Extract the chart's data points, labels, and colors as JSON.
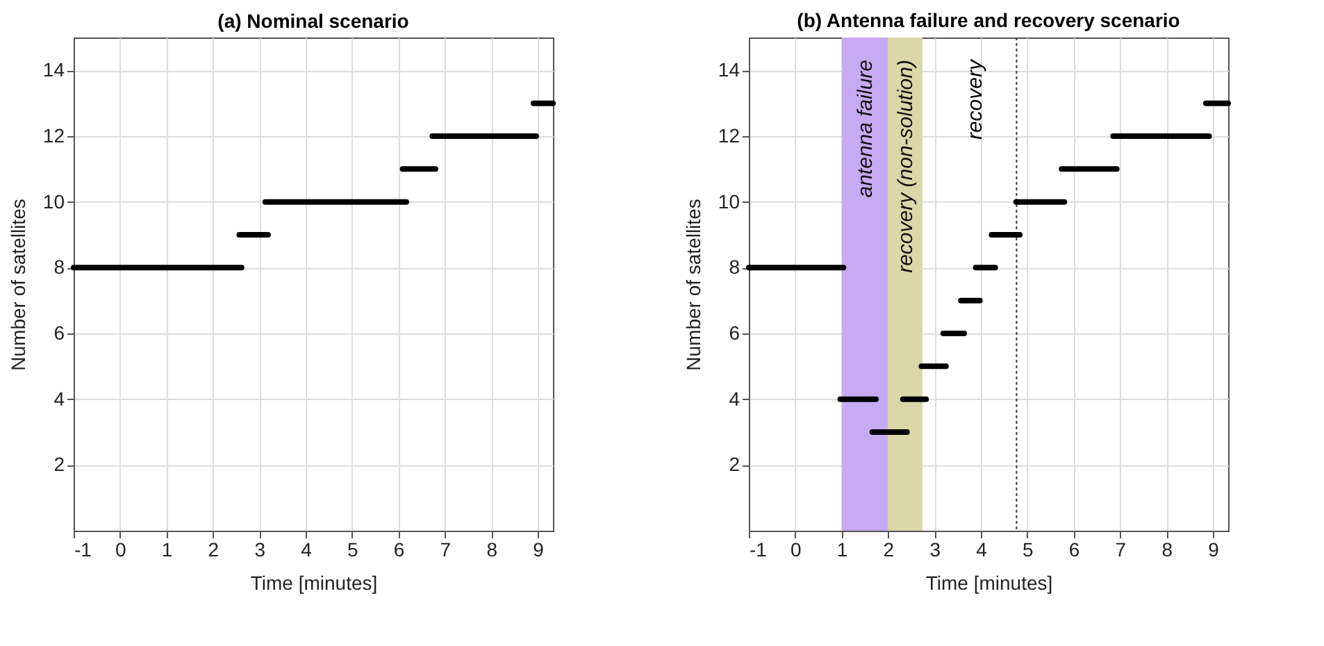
{
  "chart_data": [
    {
      "type": "line",
      "title": "(a) Nominal scenario",
      "xlabel": "Time [minutes]",
      "ylabel": "Number of satellites",
      "xlim": [
        -1,
        9.33
      ],
      "xticks": [
        -1,
        0,
        1,
        2,
        3,
        4,
        5,
        6,
        7,
        8,
        9
      ],
      "ylim": [
        0,
        15
      ],
      "yticks": [
        2,
        4,
        6,
        8,
        10,
        12,
        14
      ],
      "grid": true,
      "marker": "none",
      "line_style": "solid",
      "series": [
        {
          "color": "#000000",
          "x": [
            -1,
            2.62,
            null,
            2.57,
            3.19,
            null,
            3.13,
            6.17,
            null,
            6.09,
            6.8,
            null,
            6.73,
            8.97,
            null,
            8.91,
            9.33
          ],
          "values": [
            8,
            8,
            null,
            9,
            9,
            null,
            10,
            10,
            null,
            11,
            11,
            null,
            12,
            12,
            null,
            13,
            13
          ]
        }
      ]
    },
    {
      "type": "line",
      "title": "(b) Antenna failure and recovery scenario",
      "xlabel": "Time [minutes]",
      "ylabel": "Number of satellites",
      "xlim": [
        -1,
        9.33
      ],
      "xticks": [
        -1,
        0,
        1,
        2,
        3,
        4,
        5,
        6,
        7,
        8,
        9
      ],
      "ylim": [
        0,
        15
      ],
      "yticks": [
        2,
        4,
        6,
        8,
        10,
        12,
        14
      ],
      "grid": true,
      "marker": "none",
      "line_style": "solid",
      "bands": [
        {
          "axis": "x",
          "from": 1,
          "to": 2,
          "label": "antenna failure",
          "color": "#c8aaf2"
        },
        {
          "axis": "x",
          "from": 2,
          "to": 2.74,
          "label": "recovery (non-solution)",
          "color": "#d8d8a8"
        }
      ],
      "ref_lines": [
        {
          "axis": "x",
          "value": 4.77,
          "label": "recovery",
          "color": "#333333",
          "line_style": "dotted"
        }
      ],
      "series": [
        {
          "color": "#000000",
          "x": [
            -1,
            1.04,
            null,
            0.97,
            1.74,
            null,
            1.66,
            2.41,
            null,
            2.32,
            2.82,
            null,
            2.72,
            3.25,
            null,
            3.19,
            3.64,
            null,
            3.57,
            3.98,
            null,
            3.89,
            4.31,
            null,
            4.23,
            4.84,
            null,
            4.76,
            5.8,
            null,
            5.74,
            6.93,
            null,
            6.85,
            8.92,
            null,
            8.85,
            9.33
          ],
          "values": [
            8,
            8,
            null,
            4,
            4,
            null,
            3,
            3,
            null,
            4,
            4,
            null,
            5,
            5,
            null,
            6,
            6,
            null,
            7,
            7,
            null,
            8,
            8,
            null,
            9,
            9,
            null,
            10,
            10,
            null,
            11,
            11,
            null,
            12,
            12,
            null,
            13,
            13
          ]
        }
      ]
    }
  ]
}
